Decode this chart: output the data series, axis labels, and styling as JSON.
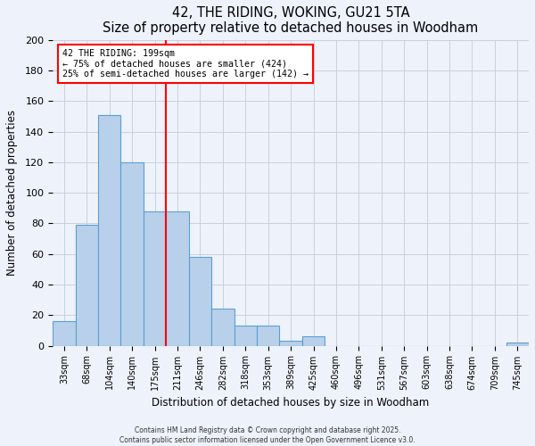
{
  "title": "42, THE RIDING, WOKING, GU21 5TA",
  "subtitle": "Size of property relative to detached houses in Woodham",
  "xlabel": "Distribution of detached houses by size in Woodham",
  "ylabel": "Number of detached properties",
  "bar_values": [
    16,
    79,
    151,
    120,
    88,
    88,
    58,
    24,
    13,
    13,
    3,
    6,
    0,
    0,
    0,
    0,
    0,
    0,
    0,
    0,
    2
  ],
  "bin_labels": [
    "33sqm",
    "68sqm",
    "104sqm",
    "140sqm",
    "175sqm",
    "211sqm",
    "246sqm",
    "282sqm",
    "318sqm",
    "353sqm",
    "389sqm",
    "425sqm",
    "460sqm",
    "496sqm",
    "531sqm",
    "567sqm",
    "603sqm",
    "638sqm",
    "674sqm",
    "709sqm",
    "745sqm"
  ],
  "bar_color": "#b8d0ea",
  "bar_edgecolor": "#5a9fd4",
  "ylim": [
    0,
    200
  ],
  "yticks": [
    0,
    20,
    40,
    60,
    80,
    100,
    120,
    140,
    160,
    180,
    200
  ],
  "redline_bin_index": 5,
  "annotation_title": "42 THE RIDING: 199sqm",
  "annotation_line1": "← 75% of detached houses are smaller (424)",
  "annotation_line2": "25% of semi-detached houses are larger (142) →",
  "footer1": "Contains HM Land Registry data © Crown copyright and database right 2025.",
  "footer2": "Contains public sector information licensed under the Open Government Licence v3.0.",
  "background_color": "#eef2fa",
  "plot_bg_color": "#eef2fa",
  "grid_color": "#c8d0e0"
}
